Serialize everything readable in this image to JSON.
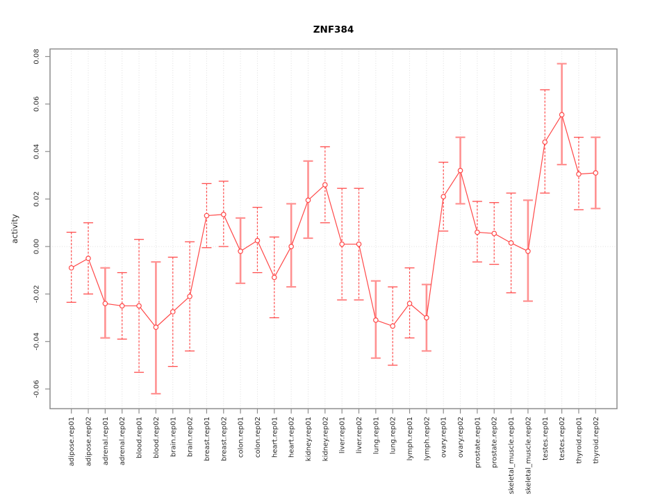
{
  "figure": {
    "background": "#ffffff"
  },
  "chart_data": {
    "type": "line",
    "title": "ZNF384",
    "xlabel": "",
    "ylabel": "activity",
    "legend": "none",
    "point_marker": "open-circle",
    "error_bars": true,
    "grid": {
      "vertical_dotted_per_category": true,
      "horizontal_dotted_zero_line": true
    },
    "ylim": [
      -0.0683,
      0.0832
    ],
    "yticks": [
      -0.06,
      -0.04,
      -0.02,
      0.0,
      0.02,
      0.04,
      0.06,
      0.08
    ],
    "categories": [
      "adipose.rep01",
      "adipose.rep02",
      "adrenal.rep01",
      "adrenal.rep02",
      "blood.rep01",
      "blood.rep02",
      "brain.rep01",
      "brain.rep02",
      "breast.rep01",
      "breast.rep02",
      "colon.rep01",
      "colon.rep02",
      "heart.rep01",
      "heart.rep02",
      "kidney.rep01",
      "kidney.rep02",
      "liver.rep01",
      "liver.rep02",
      "lung.rep01",
      "lung.rep02",
      "lymph.rep01",
      "lymph.rep02",
      "ovary.rep01",
      "ovary.rep02",
      "prostate.rep01",
      "prostate.rep02",
      "skeletal_muscle.rep01",
      "skeletal_muscle.rep02",
      "testes.rep01",
      "testes.rep02",
      "thyroid.rep01",
      "thyroid.rep02"
    ],
    "values": [
      -0.009,
      -0.005,
      -0.024,
      -0.025,
      -0.025,
      -0.034,
      -0.0275,
      -0.021,
      0.013,
      0.0135,
      -0.002,
      0.0025,
      -0.013,
      0.0,
      0.0195,
      0.026,
      0.001,
      0.001,
      -0.031,
      -0.0335,
      -0.024,
      -0.03,
      0.021,
      0.032,
      0.006,
      0.0055,
      0.0015,
      -0.002,
      0.044,
      0.0555,
      0.0305,
      0.031
    ],
    "ci_low": [
      -0.0235,
      -0.02,
      -0.0385,
      -0.039,
      -0.053,
      -0.062,
      -0.0505,
      -0.044,
      -0.0005,
      0.0,
      -0.0155,
      -0.011,
      -0.03,
      -0.017,
      0.0035,
      0.01,
      -0.0225,
      -0.0225,
      -0.047,
      -0.05,
      -0.0385,
      -0.044,
      0.0065,
      0.018,
      -0.0065,
      -0.0075,
      -0.0195,
      -0.023,
      0.0225,
      0.0345,
      0.0155,
      0.016
    ],
    "ci_high": [
      0.006,
      0.01,
      -0.009,
      -0.011,
      0.003,
      -0.0065,
      -0.0045,
      0.002,
      0.0265,
      0.0275,
      0.012,
      0.0165,
      0.004,
      0.018,
      0.036,
      0.042,
      0.0245,
      0.0245,
      -0.0145,
      -0.017,
      -0.009,
      -0.016,
      0.0355,
      0.046,
      0.019,
      0.0185,
      0.0225,
      0.0195,
      0.066,
      0.077,
      0.046,
      0.046
    ],
    "error_bar_styles": [
      "dashed",
      "dashed",
      "solid",
      "dashed",
      "dashed",
      "solid",
      "dashed",
      "dashed",
      "dashed",
      "dashed",
      "solid",
      "dashed",
      "dashed",
      "solid",
      "solid",
      "dashed",
      "dashed",
      "dashed",
      "solid",
      "dashed",
      "dashed",
      "solid",
      "dashed",
      "solid",
      "dashed",
      "dashed",
      "dashed",
      "solid",
      "dashed",
      "solid",
      "dashed",
      "solid"
    ],
    "colors": {
      "series_line": "#ff4747",
      "marker": "#ff4747",
      "error_bar_dashed": "#ff4c4c",
      "error_bar_solid": "#ff9191",
      "grid": "#dedede",
      "frame": "#8c8c8c",
      "tick_text": "#2b2b2b",
      "title_text": "#000000"
    }
  }
}
